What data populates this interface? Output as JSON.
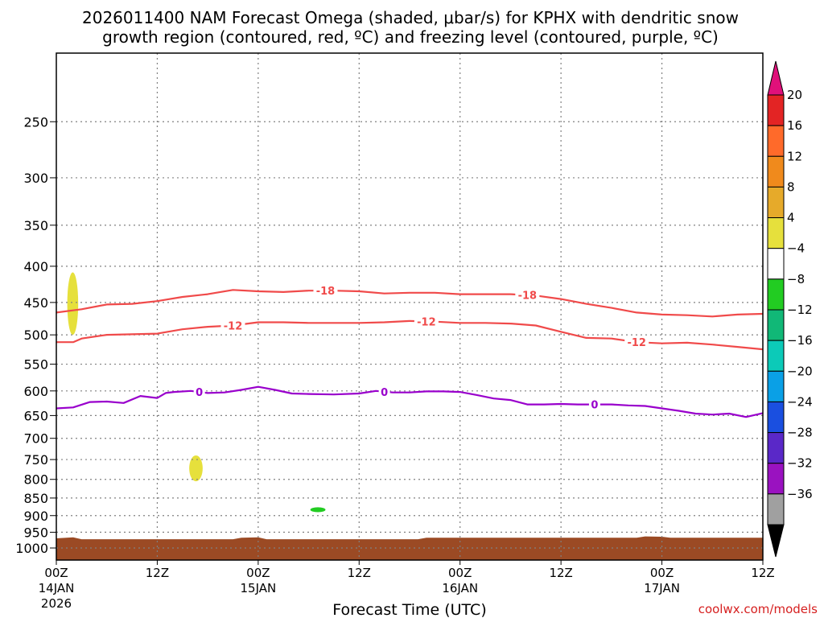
{
  "chart_data": {
    "type": "time-height cross section",
    "title_line1": "2026011400 NAM Forecast Omega (shaded, μbar/s) for KPHX with dendritic snow",
    "title_line2": "growth region (contoured, red, ºC) and freezing level (contoured, purple, ºC)",
    "xlabel": "Forecast Time (UTC)",
    "credit": "coolwx.com/models",
    "x_range_hours": [
      0,
      84
    ],
    "y_axis": "pressure (hPa), log scale, inverted",
    "y_range": [
      1040,
      200
    ],
    "y_ticks": [
      "250",
      "300",
      "350",
      "400",
      "450",
      "500",
      "550",
      "600",
      "650",
      "700",
      "750",
      "800",
      "850",
      "900",
      "950",
      "1000"
    ],
    "x_ticks": [
      {
        "hour": 0,
        "label": "00Z",
        "sub1": "14JAN",
        "sub2": "2026"
      },
      {
        "hour": 12,
        "label": "12Z",
        "sub1": "",
        "sub2": ""
      },
      {
        "hour": 24,
        "label": "00Z",
        "sub1": "15JAN",
        "sub2": ""
      },
      {
        "hour": 36,
        "label": "12Z",
        "sub1": "",
        "sub2": ""
      },
      {
        "hour": 48,
        "label": "00Z",
        "sub1": "16JAN",
        "sub2": ""
      },
      {
        "hour": 60,
        "label": "12Z",
        "sub1": "",
        "sub2": ""
      },
      {
        "hour": 72,
        "label": "00Z",
        "sub1": "17JAN",
        "sub2": ""
      },
      {
        "hour": 84,
        "label": "12Z",
        "sub1": "",
        "sub2": ""
      }
    ],
    "series": [
      {
        "name": "-18 C isotherm",
        "label": "-18",
        "color": "#f04a4a",
        "hours": [
          0,
          3,
          6,
          9,
          12,
          15,
          18,
          21,
          24,
          27,
          30,
          33,
          36,
          39,
          42,
          45,
          48,
          51,
          54,
          57,
          60,
          63,
          66,
          69,
          72,
          75,
          78,
          81,
          84
        ],
        "pressure": [
          465,
          460,
          453,
          452,
          448,
          442,
          438,
          432,
          434,
          435,
          433,
          433,
          434,
          437,
          436,
          436,
          438,
          438,
          438,
          440,
          445,
          452,
          458,
          465,
          468,
          469,
          471,
          468,
          467
        ],
        "label_hours": [
          32,
          56
        ]
      },
      {
        "name": "-12 C isotherm",
        "label": "-12",
        "color": "#f04a4a",
        "hours": [
          0,
          2,
          3,
          6,
          9,
          12,
          15,
          18,
          21,
          24,
          27,
          30,
          33,
          36,
          39,
          42,
          45,
          48,
          51,
          54,
          57,
          60,
          63,
          66,
          69,
          72,
          75,
          78,
          81,
          84
        ],
        "pressure": [
          512,
          512,
          506,
          500,
          499,
          498,
          491,
          487,
          485,
          480,
          480,
          481,
          481,
          481,
          480,
          478,
          479,
          481,
          481,
          482,
          485,
          495,
          505,
          506,
          512,
          514,
          513,
          516,
          520,
          524
        ],
        "label_hours": [
          21,
          44,
          69
        ]
      },
      {
        "name": "0 C isotherm (freezing level)",
        "label": "0",
        "color": "#9900cc",
        "hours": [
          0,
          2,
          4,
          6,
          8,
          10,
          12,
          13,
          14,
          16,
          18,
          20,
          22,
          24,
          26,
          28,
          30,
          33,
          36,
          38,
          40,
          42,
          44,
          46,
          48,
          50,
          52,
          54,
          56,
          58,
          60,
          62,
          64,
          66,
          68,
          70,
          72,
          74,
          76,
          78,
          80,
          82,
          84
        ],
        "pressure": [
          635,
          633,
          622,
          621,
          624,
          610,
          614,
          604,
          602,
          600,
          604,
          603,
          598,
          592,
          598,
          605,
          606,
          607,
          605,
          600,
          603,
          603,
          601,
          601,
          602,
          608,
          615,
          618,
          627,
          627,
          626,
          627,
          627,
          627,
          629,
          630,
          635,
          640,
          646,
          648,
          646,
          653,
          645
        ],
        "label_hours": [
          17,
          39,
          64
        ]
      }
    ],
    "shaded_features": [
      {
        "name": "weak rising motion",
        "omega_range": "4 to 8",
        "hours": [
          1.3,
          2.6
        ],
        "pressure": [
          408,
          500
        ],
        "color": "#e6e03c"
      },
      {
        "name": "weak rising motion",
        "omega_range": "4 to 8",
        "hours": [
          15.8,
          17.4
        ],
        "pressure": [
          740,
          805
        ],
        "color": "#e6e03c"
      },
      {
        "name": "weak sinking motion",
        "omega_range": "-4 to -8",
        "hours": [
          30.2,
          32.0
        ],
        "pressure": [
          876,
          890
        ],
        "color": "#22cc22"
      }
    ],
    "terrain": {
      "name": "below ground",
      "color": "#9b4a24",
      "hours": [
        0,
        2,
        3,
        21,
        22,
        24,
        25,
        43,
        44,
        46,
        47,
        69,
        70,
        72,
        73,
        84
      ],
      "pressure": [
        969,
        966,
        972,
        972,
        967,
        966,
        972,
        972,
        967,
        967,
        967,
        967,
        963,
        964,
        967,
        967
      ]
    },
    "colorbar": {
      "labels": [
        "20",
        "16",
        "12",
        "8",
        "4",
        "−4",
        "−8",
        "−12",
        "−16",
        "−20",
        "−24",
        "−28",
        "−32",
        "−36"
      ],
      "bin_colors": [
        "#e32424",
        "#ff6a2a",
        "#f08a1c",
        "#e6aa2a",
        "#e6e03c",
        "#ffffff",
        "#22cc22",
        "#11b877",
        "#0ccab8",
        "#0aa0e6",
        "#1a4fe0",
        "#5a28c8",
        "#9a12c0",
        "#a0a0a0"
      ],
      "top_arrow_color": "#e0107a",
      "bottom_arrow_color": "#000000"
    }
  }
}
